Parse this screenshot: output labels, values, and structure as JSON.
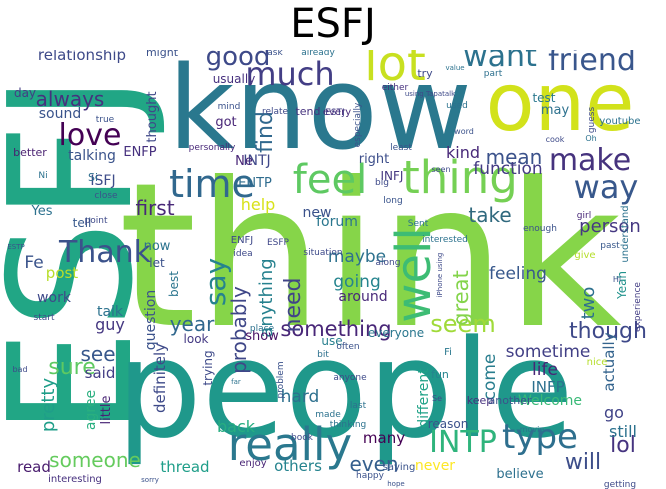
{
  "title": "ESFJ",
  "words": [
    {
      "text": "ESFJ",
      "color": "#21a685"
    },
    {
      "text": "think",
      "color": "#86d549"
    },
    {
      "text": "people",
      "color": "#1f988b"
    },
    {
      "text": "know",
      "color": "#2a788e"
    },
    {
      "text": "one",
      "color": "#d2e21b"
    },
    {
      "text": "really",
      "color": "#2a788e"
    },
    {
      "text": "time",
      "color": "#31688e"
    },
    {
      "text": "feel",
      "color": "#5ec962"
    },
    {
      "text": "thing",
      "color": "#75d054"
    },
    {
      "text": "well",
      "color": "#3dbc74"
    },
    {
      "text": "type",
      "color": "#2e6f8e"
    },
    {
      "text": "lot",
      "color": "#c8e020"
    },
    {
      "text": "much",
      "color": "#433e85"
    },
    {
      "text": "good",
      "color": "#3e4a89"
    },
    {
      "text": "want",
      "color": "#2c728e"
    },
    {
      "text": "friend",
      "color": "#39568c"
    },
    {
      "text": "love",
      "color": "#440154"
    },
    {
      "text": "make",
      "color": "#46337e"
    },
    {
      "text": "way",
      "color": "#38588c"
    },
    {
      "text": "Thank",
      "color": "#3b528b"
    },
    {
      "text": "say",
      "color": "#25838e"
    },
    {
      "text": "INTP",
      "color": "#2fb47c"
    },
    {
      "text": "something",
      "color": "#482677"
    },
    {
      "text": "though",
      "color": "#3e4989"
    },
    {
      "text": "find",
      "color": "#31688e"
    },
    {
      "text": "always",
      "color": "#46327e"
    },
    {
      "text": "first",
      "color": "#482878"
    },
    {
      "text": "take",
      "color": "#30697e"
    },
    {
      "text": "seem",
      "color": "#a0da39"
    },
    {
      "text": "need",
      "color": "#414487"
    },
    {
      "text": "probably",
      "color": "#3f4788"
    },
    {
      "text": "anything",
      "color": "#26818e"
    },
    {
      "text": "see",
      "color": "#38588c"
    },
    {
      "text": "sure",
      "color": "#5ec962"
    },
    {
      "text": "year",
      "color": "#31688e"
    },
    {
      "text": "someone",
      "color": "#65cb5e"
    },
    {
      "text": "even",
      "color": "#355f8d"
    },
    {
      "text": "will",
      "color": "#3d4e8a"
    },
    {
      "text": "lol",
      "color": "#463480"
    },
    {
      "text": "help",
      "color": "#d8e219"
    },
    {
      "text": "Fe",
      "color": "#3a538b"
    },
    {
      "text": "kind",
      "color": "#482979"
    },
    {
      "text": "mean",
      "color": "#3b528b"
    },
    {
      "text": "function",
      "color": "#443b84"
    },
    {
      "text": "person",
      "color": "#453882"
    },
    {
      "text": "feeling",
      "color": "#38588c"
    },
    {
      "text": "going",
      "color": "#25848e"
    },
    {
      "text": "maybe",
      "color": "#2d718e"
    },
    {
      "text": "great",
      "color": "#84d44b"
    },
    {
      "text": "two",
      "color": "#2d708e"
    },
    {
      "text": "Yeah",
      "color": "#20928c"
    },
    {
      "text": "sometime",
      "color": "#424086"
    },
    {
      "text": "come",
      "color": "#287d8e"
    },
    {
      "text": "life",
      "color": "#482677"
    },
    {
      "text": "actually",
      "color": "#33638d"
    },
    {
      "text": "INFP",
      "color": "#2d708e"
    },
    {
      "text": "Welcome",
      "color": "#39b977"
    },
    {
      "text": "different",
      "color": "#1fa287"
    },
    {
      "text": "pretty",
      "color": "#1f9e89"
    },
    {
      "text": "said",
      "color": "#433e85"
    },
    {
      "text": "agree",
      "color": "#29af7f"
    },
    {
      "text": "little",
      "color": "#482475"
    },
    {
      "text": "definitely",
      "color": "#3e4a89"
    },
    {
      "text": "question",
      "color": "#3b528b"
    },
    {
      "text": "guy",
      "color": "#453781"
    },
    {
      "text": "talk",
      "color": "#2c728e"
    },
    {
      "text": "work",
      "color": "#3e4989"
    },
    {
      "text": "post",
      "color": "#b8de29"
    },
    {
      "text": "hard",
      "color": "#2d708e"
    },
    {
      "text": "back",
      "color": "#27ad81"
    },
    {
      "text": "many",
      "color": "#440154"
    },
    {
      "text": "still",
      "color": "#2c728e"
    },
    {
      "text": "go",
      "color": "#404387"
    },
    {
      "text": "read",
      "color": "#481b6d"
    },
    {
      "text": "thread",
      "color": "#1f9e89"
    },
    {
      "text": "others",
      "color": "#25838e"
    },
    {
      "text": "never",
      "color": "#fde725"
    },
    {
      "text": "believe",
      "color": "#2d708e"
    },
    {
      "text": "relationship",
      "color": "#3e4a89"
    },
    {
      "text": "talking",
      "color": "#3a538b"
    },
    {
      "text": "ENFP",
      "color": "#46307e"
    },
    {
      "text": "ENTP",
      "color": "#2f6c8e"
    },
    {
      "text": "INTJ",
      "color": "#3f4889"
    },
    {
      "text": "ISFJ",
      "color": "#3e4c8a"
    },
    {
      "text": "INFJ",
      "color": "#453781"
    },
    {
      "text": "Ne",
      "color": "#482576"
    },
    {
      "text": "Yes",
      "color": "#2d718e"
    },
    {
      "text": "sound",
      "color": "#3a548c"
    },
    {
      "text": "day",
      "color": "#433d84"
    },
    {
      "text": "forum",
      "color": "#2a768e"
    },
    {
      "text": "new",
      "color": "#3b528b"
    },
    {
      "text": "around",
      "color": "#482979"
    },
    {
      "text": "right",
      "color": "#3d4e8a"
    },
    {
      "text": "got",
      "color": "#482677"
    },
    {
      "text": "usually",
      "color": "#46307e"
    },
    {
      "text": "thought",
      "color": "#3f4788"
    },
    {
      "text": "now",
      "color": "#2c738e"
    },
    {
      "text": "let",
      "color": "#3b518b"
    },
    {
      "text": "best",
      "color": "#2b758e"
    },
    {
      "text": "look",
      "color": "#443983"
    },
    {
      "text": "show",
      "color": "#471063"
    },
    {
      "text": "trying",
      "color": "#3e4a89"
    },
    {
      "text": "use",
      "color": "#277f8e"
    },
    {
      "text": "everyone",
      "color": "#2a778e"
    },
    {
      "text": "test",
      "color": "#2a788e"
    },
    {
      "text": "may",
      "color": "#2d718e"
    },
    {
      "text": "tell",
      "color": "#38598c"
    },
    {
      "text": "Si",
      "color": "#2e6e8e"
    },
    {
      "text": "better",
      "color": "#481f70"
    },
    {
      "text": "might",
      "color": "#3b528b"
    },
    {
      "text": "tend",
      "color": "#46327e"
    },
    {
      "text": "try",
      "color": "#3e4a89"
    },
    {
      "text": "every",
      "color": "#482878"
    },
    {
      "text": "fun",
      "color": "#25848e"
    },
    {
      "text": "Fi",
      "color": "#2a788e"
    },
    {
      "text": "enjoy",
      "color": "#482475"
    },
    {
      "text": "saying",
      "color": "#3a538b"
    },
    {
      "text": "reason",
      "color": "#3b528b"
    },
    {
      "text": "keep",
      "color": "#46307e"
    },
    {
      "text": "interesting",
      "color": "#46307e"
    },
    {
      "text": "another",
      "color": "#3b528b"
    },
    {
      "text": "ENFJ",
      "color": "#3e4989"
    },
    {
      "text": "ESFP",
      "color": "#3f4788"
    },
    {
      "text": "ESTJ",
      "color": "#433e85"
    },
    {
      "text": "idea",
      "color": "#3e4989"
    },
    {
      "text": "long",
      "color": "#3a548c"
    },
    {
      "text": "either",
      "color": "#46307e"
    },
    {
      "text": "part",
      "color": "#2d708e"
    },
    {
      "text": "ask",
      "color": "#3b528b"
    },
    {
      "text": "already",
      "color": "#2c728e"
    },
    {
      "text": "nice",
      "color": "#b5de2b"
    },
    {
      "text": "guess",
      "color": "#3e4a89"
    },
    {
      "text": "youtube",
      "color": "#2c728e"
    },
    {
      "text": "understand",
      "color": "#2c728e"
    },
    {
      "text": "give",
      "color": "#b5de2b"
    },
    {
      "text": "past",
      "color": "#38588c"
    },
    {
      "text": "enough",
      "color": "#3b528b"
    },
    {
      "text": "girl",
      "color": "#482878"
    },
    {
      "text": "experience",
      "color": "#433e85"
    },
    {
      "text": "getting",
      "color": "#3e4a89"
    },
    {
      "text": "made",
      "color": "#2c728e"
    },
    {
      "text": "bit",
      "color": "#2d708e"
    },
    {
      "text": "often",
      "color": "#3b528b"
    },
    {
      "text": "Sent",
      "color": "#2c728e"
    },
    {
      "text": "situation",
      "color": "#3e4a89"
    },
    {
      "text": "close",
      "color": "#3b528b"
    },
    {
      "text": "point",
      "color": "#3e4a89"
    },
    {
      "text": "true",
      "color": "#3b528b"
    },
    {
      "text": "start",
      "color": "#3e4a89"
    },
    {
      "text": "place",
      "color": "#2c728e"
    },
    {
      "text": "problem",
      "color": "#3b528b"
    },
    {
      "text": "anyone",
      "color": "#3e4a89"
    },
    {
      "text": "last",
      "color": "#2c728e"
    },
    {
      "text": "book",
      "color": "#3e4a89"
    },
    {
      "text": "happy",
      "color": "#3b528b"
    },
    {
      "text": "thinking",
      "color": "#2c728e"
    },
    {
      "text": "mind",
      "color": "#3b528b"
    },
    {
      "text": "relate",
      "color": "#3e4a89"
    },
    {
      "text": "used",
      "color": "#2c728e"
    },
    {
      "text": "especially",
      "color": "#3b528b"
    },
    {
      "text": "personally",
      "color": "#482878"
    },
    {
      "text": "Ni",
      "color": "#2c728e"
    },
    {
      "text": "big",
      "color": "#3e4a89"
    },
    {
      "text": "least",
      "color": "#3b528b"
    },
    {
      "text": "along",
      "color": "#3e4a89"
    },
    {
      "text": "interested",
      "color": "#2c728e"
    },
    {
      "text": "seen",
      "color": "#3e4a89"
    },
    {
      "text": "word",
      "color": "#3b528b"
    },
    {
      "text": "cook",
      "color": "#3e4a89"
    },
    {
      "text": "Oh",
      "color": "#2c728e"
    },
    {
      "text": "Hi",
      "color": "#3b528b"
    },
    {
      "text": "Se",
      "color": "#3e4a89"
    },
    {
      "text": "movie",
      "color": "#2c728e"
    },
    {
      "text": "ESTP",
      "color": "#3b528b"
    },
    {
      "text": "using Tapatalk",
      "color": "#3e4a89"
    },
    {
      "text": "far",
      "color": "#2c728e"
    },
    {
      "text": "sorry",
      "color": "#3b528b"
    },
    {
      "text": "bad",
      "color": "#3e4a89"
    },
    {
      "text": "hope",
      "color": "#3b528b"
    },
    {
      "text": "value",
      "color": "#2c728e"
    },
    {
      "text": "iPhone using",
      "color": "#3e4a89"
    }
  ]
}
